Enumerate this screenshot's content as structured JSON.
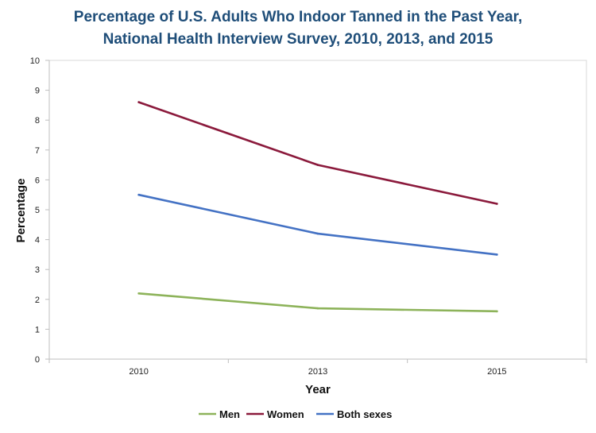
{
  "chart_data": {
    "type": "line",
    "title_lines": [
      "Percentage of U.S. Adults Who Indoor Tanned in the Past Year,",
      "National Health Interview Survey, 2010, 2013, and 2015"
    ],
    "xlabel": "Year",
    "ylabel": "Percentage",
    "categories": [
      "2010",
      "2013",
      "2015"
    ],
    "ylim": [
      0,
      10
    ],
    "yticks": [
      "0",
      "1",
      "2",
      "3",
      "4",
      "5",
      "6",
      "7",
      "8",
      "9",
      "10"
    ],
    "grid": false,
    "legend_position": "bottom",
    "series": [
      {
        "name": "Men",
        "color": "#8db35a",
        "values": [
          2.2,
          1.7,
          1.6
        ]
      },
      {
        "name": "Women",
        "color": "#8b1a3c",
        "values": [
          8.6,
          6.5,
          5.2
        ]
      },
      {
        "name": "Both sexes",
        "color": "#4472c4",
        "values": [
          5.5,
          4.2,
          3.5
        ]
      }
    ]
  }
}
